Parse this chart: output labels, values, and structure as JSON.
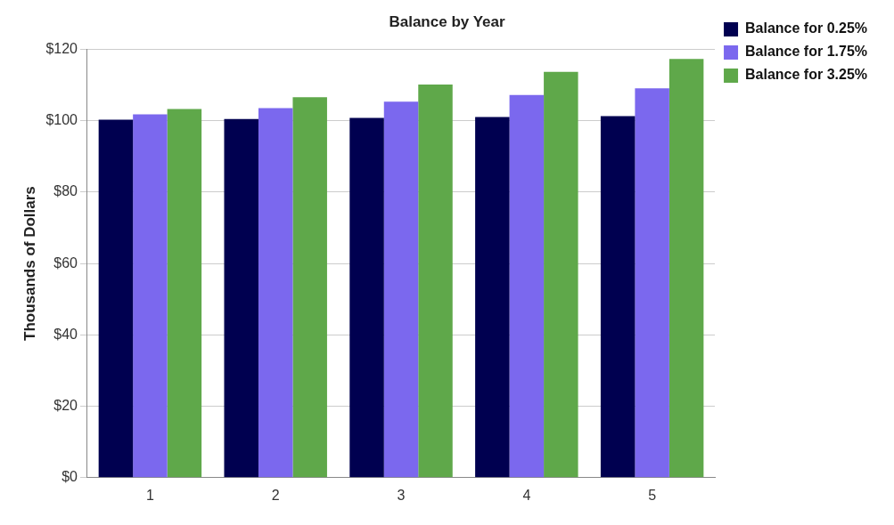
{
  "chart_data": {
    "type": "bar",
    "title": "Balance by Year",
    "ylabel": "Thousands of Dollars",
    "categories": [
      "1",
      "2",
      "3",
      "4",
      "5"
    ],
    "series": [
      {
        "name": "Balance for 0.25%",
        "color": "#000050",
        "values": [
          100.3,
          100.5,
          100.8,
          101.0,
          101.3
        ]
      },
      {
        "name": "Balance for 1.75%",
        "color": "#7b68ee",
        "values": [
          101.8,
          103.5,
          105.3,
          107.2,
          109.1
        ]
      },
      {
        "name": "Balance for 3.25%",
        "color": "#5fa84a",
        "values": [
          103.3,
          106.6,
          110.1,
          113.7,
          117.3
        ]
      }
    ],
    "ylim": [
      0,
      120
    ],
    "yticks": [
      {
        "value": 0,
        "label": "$0"
      },
      {
        "value": 20,
        "label": "$20"
      },
      {
        "value": 40,
        "label": "$40"
      },
      {
        "value": 60,
        "label": "$60"
      },
      {
        "value": 80,
        "label": "$80"
      },
      {
        "value": 100,
        "label": "$100"
      },
      {
        "value": 120,
        "label": "$120"
      }
    ],
    "grid": "y",
    "legend": "top right"
  }
}
